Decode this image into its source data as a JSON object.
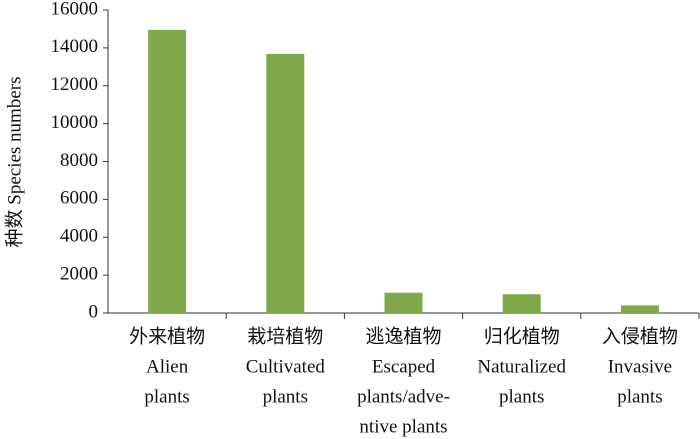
{
  "chart_data": {
    "type": "bar",
    "y_label": "种数 Species numbers",
    "categories": [
      [
        "外来植物",
        "Alien",
        "plants"
      ],
      [
        "栽培植物",
        "Cultivated",
        "plants"
      ],
      [
        "逃逸植物",
        "Escaped",
        "plants/adve-",
        "ntive plants"
      ],
      [
        "归化植物",
        "Naturalized",
        "plants"
      ],
      [
        "入侵植物",
        "Invasive",
        "plants"
      ]
    ],
    "values": [
      14950,
      13680,
      1070,
      990,
      400
    ],
    "color": "#7fa84a",
    "ylim": [
      0,
      16000
    ],
    "yticks": [
      0,
      2000,
      4000,
      6000,
      8000,
      10000,
      12000,
      14000,
      16000
    ],
    "grid": false
  }
}
